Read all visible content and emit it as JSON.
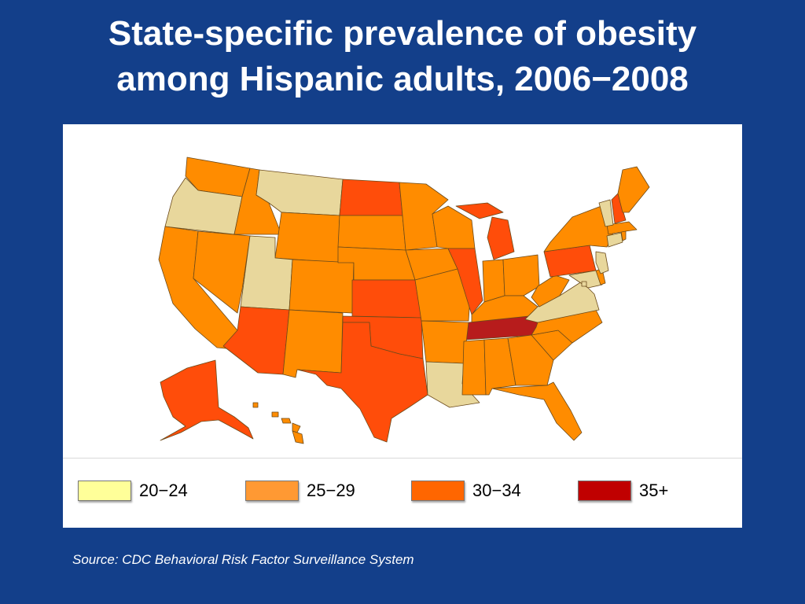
{
  "title": {
    "line1": "State-specific prevalence of obesity",
    "line2": "among Hispanic adults, 2006−2008"
  },
  "legend": [
    {
      "label": "20−24",
      "color": "#ffff99"
    },
    {
      "label": "25−29",
      "color": "#ff9933"
    },
    {
      "label": "30−34",
      "color": "#ff6600"
    },
    {
      "label": "35+",
      "color": "#c00000"
    }
  ],
  "map_colors": {
    "20-24": "#e8d79c",
    "25-29": "#ff8c00",
    "30-34": "#ff4d0a",
    "35+": "#b71c1c"
  },
  "states": {
    "AK": "30-34",
    "AL": "25-29",
    "AR": "25-29",
    "AZ": "30-34",
    "CA": "25-29",
    "CO": "25-29",
    "CT": "20-24",
    "DC": "20-24",
    "DE": "25-29",
    "FL": "25-29",
    "GA": "25-29",
    "HI": "25-29",
    "IA": "25-29",
    "ID": "25-29",
    "IL": "30-34",
    "IN": "25-29",
    "KS": "30-34",
    "KY": "25-29",
    "LA": "20-24",
    "MA": "25-29",
    "MD": "20-24",
    "ME": "25-29",
    "MI": "30-34",
    "MN": "25-29",
    "MO": "25-29",
    "MS": "25-29",
    "MT": "20-24",
    "NC": "25-29",
    "ND": "30-34",
    "NE": "25-29",
    "NH": "30-34",
    "NJ": "20-24",
    "NM": "25-29",
    "NV": "25-29",
    "NY": "25-29",
    "OH": "25-29",
    "OK": "30-34",
    "OR": "20-24",
    "PA": "30-34",
    "RI": "25-29",
    "SC": "25-29",
    "SD": "25-29",
    "TN": "35+",
    "TX": "30-34",
    "UT": "20-24",
    "VA": "20-24",
    "VT": "20-24",
    "WA": "25-29",
    "WI": "25-29",
    "WV": "25-29",
    "WY": "25-29"
  },
  "source": "Source: CDC Behavioral Risk Factor Surveillance System"
}
